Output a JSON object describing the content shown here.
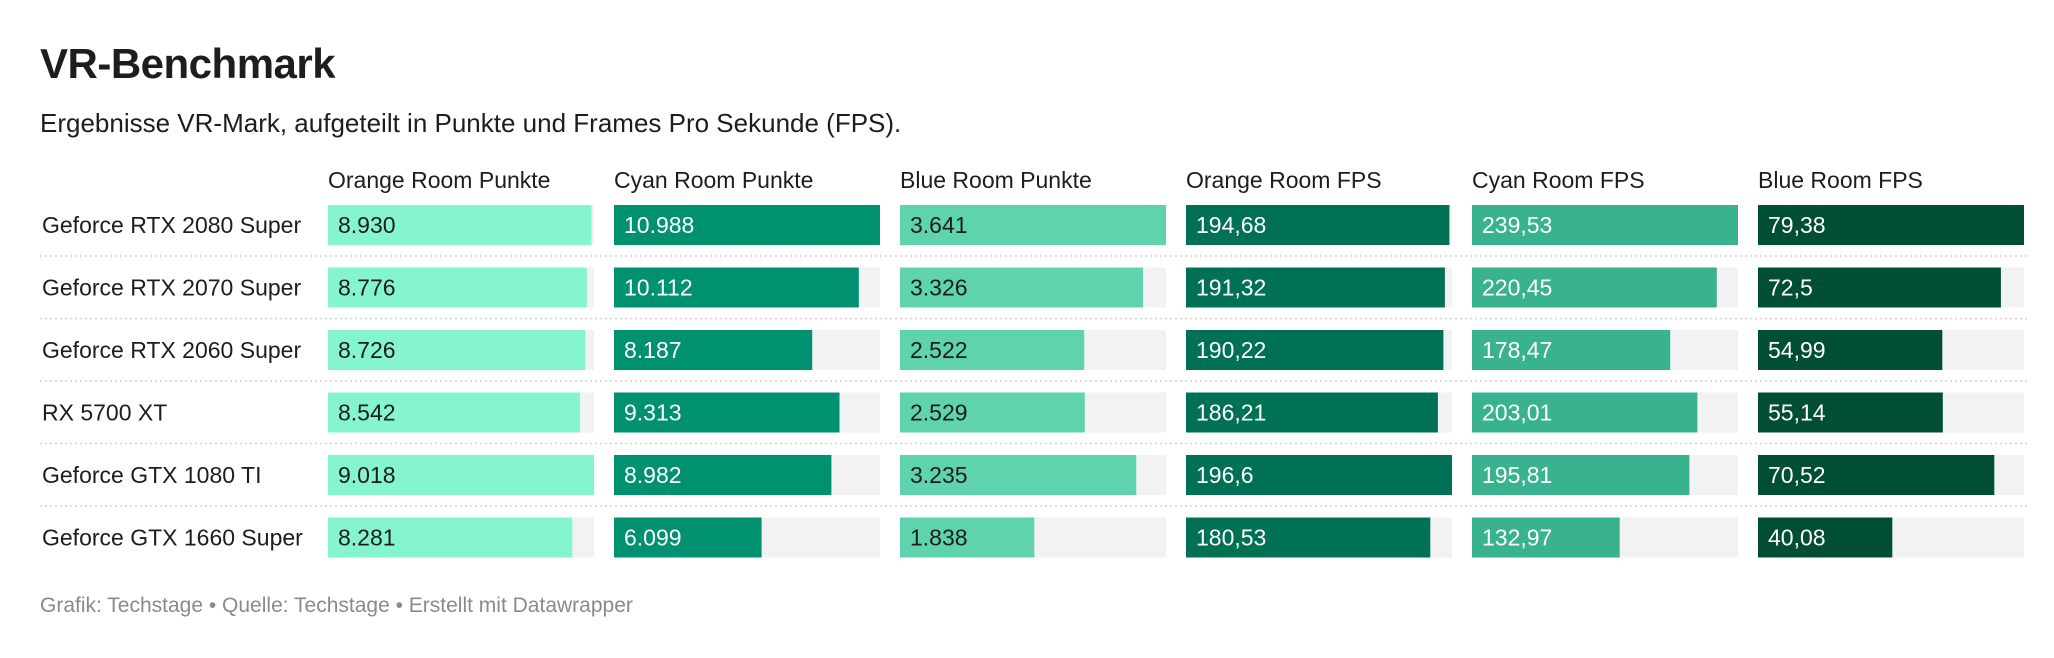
{
  "header": {
    "title": "VR-Benchmark",
    "subtitle": "Ergebnisse VR-Mark, aufgeteilt in Punkte und Frames Pro Sekunde (FPS)."
  },
  "footer": {
    "notes": "Grafik: Techstage • Quelle: Techstage • Erstellt mit Datawrapper"
  },
  "chart_data": {
    "type": "bar",
    "categories": [
      "Geforce RTX 2080 Super",
      "Geforce RTX 2070 Super",
      "Geforce RTX 2060 Super",
      "RX 5700 XT",
      "Geforce GTX 1080 TI",
      "Geforce GTX 1660 Super"
    ],
    "series": [
      {
        "name": "Orange Room Punkte",
        "values": [
          8930,
          8776,
          8726,
          8542,
          9018,
          8281
        ],
        "labels": [
          "8.930",
          "8.776",
          "8.726",
          "8.542",
          "9.018",
          "8.281"
        ],
        "max": 9018,
        "color": "#84f5cf",
        "text_color": "#1d1d1d"
      },
      {
        "name": "Cyan Room Punkte",
        "values": [
          10988,
          10112,
          8187,
          9313,
          8982,
          6099
        ],
        "labels": [
          "10.988",
          "10.112",
          "8.187",
          "9.313",
          "8.982",
          "6.099"
        ],
        "max": 10988,
        "color": "#009171",
        "text_color": "#ffffff"
      },
      {
        "name": "Blue Room Punkte",
        "values": [
          3641,
          3326,
          2522,
          2529,
          3235,
          1838
        ],
        "labels": [
          "3.641",
          "3.326",
          "2.522",
          "2.529",
          "3.235",
          "1.838"
        ],
        "max": 3641,
        "color": "#5fd3ad",
        "text_color": "#1d1d1d"
      },
      {
        "name": "Orange Room FPS",
        "values": [
          194.68,
          191.32,
          190.22,
          186.21,
          196.6,
          180.53
        ],
        "labels": [
          "194,68",
          "191,32",
          "190,22",
          "186,21",
          "196,6",
          "180,53"
        ],
        "max": 196.6,
        "color": "#007154",
        "text_color": "#ffffff"
      },
      {
        "name": "Cyan Room FPS",
        "values": [
          239.53,
          220.45,
          178.47,
          203.01,
          195.81,
          132.97
        ],
        "labels": [
          "239,53",
          "220,45",
          "178,47",
          "203,01",
          "195,81",
          "132,97"
        ],
        "max": 239.53,
        "color": "#38b28f",
        "text_color": "#ffffff"
      },
      {
        "name": "Blue Room FPS",
        "values": [
          79.38,
          72.5,
          54.99,
          55.14,
          70.52,
          40.08
        ],
        "labels": [
          "79,38",
          "72,5",
          "54,99",
          "55,14",
          "70,52",
          "40,08"
        ],
        "max": 79.38,
        "color": "#004f35",
        "text_color": "#ffffff"
      }
    ],
    "background_color": "#f2f2f2",
    "grid": false
  }
}
